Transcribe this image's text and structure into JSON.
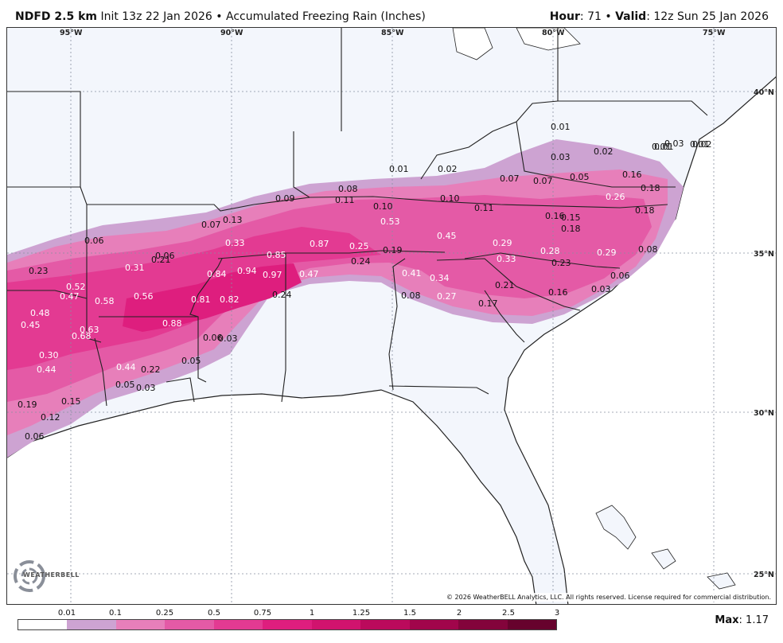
{
  "header": {
    "model": "NDFD 2.5 km",
    "init": "Init 13z 22 Jan 2026",
    "bullet": "•",
    "product": "Accumulated Freezing Rain (Inches)",
    "hour_label": "Hour",
    "hour_value": ": 71",
    "valid_label": "Valid",
    "valid_value": ": 12z Sun 25 Jan 2026"
  },
  "map": {
    "longitude_labels": [
      "95°W",
      "90°W",
      "85°W",
      "80°W",
      "75°W"
    ],
    "latitude_labels": [
      "40°N",
      "35°N",
      "30°N",
      "25°N"
    ],
    "land_color": "#f3f6fc",
    "water_color": "#ffffff",
    "border_color": "#222222",
    "county_color": "#b9bec8",
    "grid_color": "#8890a0",
    "accumulation_labels": [
      "0.01",
      "0.02",
      "0.03",
      "0.01",
      "0.01",
      "0.01",
      "0.02",
      "0.03",
      "0.01",
      "0.02",
      "0.07",
      "0.07",
      "0.05",
      "0.16",
      "0.18",
      "0.08",
      "0.09",
      "0.11",
      "0.10",
      "0.10",
      "0.11",
      "0.26",
      "0.18",
      "0.53",
      "0.16",
      "0.15",
      "0.18",
      "0.07",
      "0.13",
      "0.06",
      "0.45",
      "0.33",
      "0.87",
      "0.25",
      "0.29",
      "0.06",
      "0.21",
      "0.85",
      "0.19",
      "0.33",
      "0.28",
      "0.29",
      "0.08",
      "0.23",
      "0.31",
      "0.24",
      "0.23",
      "0.84",
      "0.94",
      "0.97",
      "0.47",
      "0.41",
      "0.34",
      "0.06",
      "0.52",
      "0.21",
      "0.47",
      "0.58",
      "0.56",
      "0.24",
      "0.08",
      "0.27",
      "0.16",
      "0.03",
      "0.17",
      "0.81",
      "0.82",
      "0.48",
      "0.45",
      "0.88",
      "0.63",
      "0.68",
      "0.03",
      "0.06",
      "0.30",
      "0.05",
      "0.44",
      "0.44",
      "0.22",
      "0.05",
      "0.03",
      "0.15",
      "0.19",
      "0.12",
      "0.06"
    ],
    "copyright": "© 2026 WeatherBELL Analytics, LLC. All rights reserved. License required for commercial distribution.",
    "logo_text": "WEATHERBELL"
  },
  "legend": {
    "ticks": [
      "0.01",
      "0.1",
      "0.25",
      "0.5",
      "0.75",
      "1",
      "1.25",
      "1.5",
      "2",
      "2.5",
      "3"
    ],
    "colors": [
      "#ffffff",
      "#cda3d2",
      "#e77fba",
      "#e45aa6",
      "#e33a92",
      "#de1e7e",
      "#d1136e",
      "#bb0a5c",
      "#a1054b",
      "#83043b",
      "#67022d"
    ]
  },
  "max": {
    "label": "Max",
    "value": ": 1.17"
  }
}
